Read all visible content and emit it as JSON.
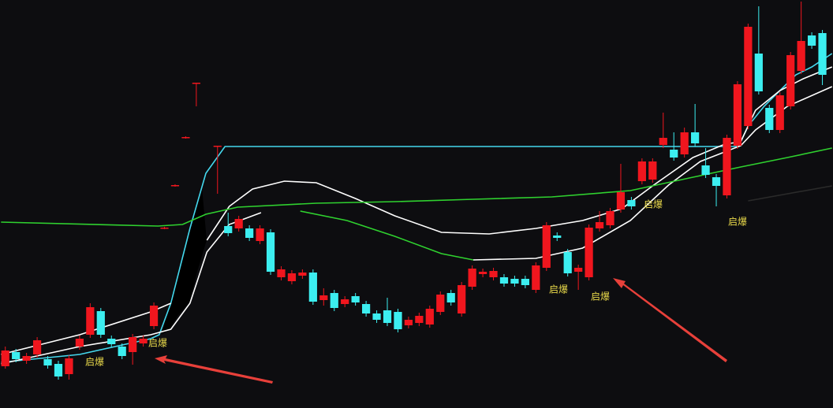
{
  "chart_data": {
    "type": "candlestick",
    "xlim": [
      -0.5,
      78
    ],
    "ylim": [
      0,
      518
    ],
    "up_color": "#f0161e",
    "down_color": "#3ceef0",
    "open": [
      53,
      71,
      60,
      68,
      62,
      56,
      43,
      78,
      93,
      123,
      88,
      78,
      71,
      82,
      104,
      228,
      282,
      343,
      412,
      null,
      332,
      231,
      228,
      228,
      212,
      223,
      166,
      161,
      168,
      172,
      137,
      146,
      132,
      142,
      132,
      120,
      124,
      122,
      105,
      108,
      106,
      122,
      146,
      120,
      154,
      170,
      166,
      166,
      164,
      164,
      150,
      178,
      219,
      198,
      173,
      166,
      228,
      232,
      252,
      264,
      288,
      290,
      334,
      328,
      322,
      350,
      308,
      293,
      270,
      333,
      358,
      450,
      381,
      353,
      383,
      428,
      473,
      476
    ],
    "high": [
      78,
      75,
      70,
      90,
      66,
      60,
      67,
      92,
      133,
      127,
      92,
      82,
      94,
      92,
      134,
      230,
      284,
      345,
      413,
      null,
      333,
      248,
      244,
      232,
      232,
      227,
      180,
      175,
      176,
      176,
      152,
      150,
      142,
      146,
      136,
      124,
      140,
      126,
      116,
      121,
      130,
      148,
      150,
      160,
      181,
      177,
      178,
      170,
      168,
      168,
      185,
      236,
      223,
      202,
      182,
      233,
      250,
      254,
      310,
      268,
      317,
      317,
      375,
      350,
      356,
      386,
      330,
      297,
      347,
      415,
      488,
      510,
      385,
      401,
      452,
      516,
      477,
      480
    ],
    "low": [
      50,
      58,
      56,
      64,
      50,
      36,
      36,
      74,
      89,
      89,
      77,
      62,
      55,
      78,
      100,
      227,
      281,
      342,
      383,
      null,
      272,
      218,
      224,
      212,
      208,
      169,
      162,
      157,
      164,
      131,
      130,
      123,
      128,
      130,
      116,
      108,
      104,
      96,
      101,
      104,
      102,
      118,
      130,
      116,
      150,
      166,
      162,
      154,
      154,
      152,
      146,
      174,
      212,
      167,
      150,
      162,
      224,
      228,
      248,
      252,
      284,
      286,
      330,
      314,
      318,
      332,
      292,
      256,
      266,
      329,
      354,
      398,
      349,
      349,
      379,
      424,
      456,
      410
    ],
    "close": [
      73,
      62,
      66,
      86,
      54,
      40,
      63,
      88,
      128,
      93,
      81,
      66,
      90,
      88,
      130,
      229,
      283,
      344,
      413,
      null,
      333,
      222,
      240,
      216,
      228,
      173,
      176,
      171,
      172,
      135,
      143,
      127,
      138,
      134,
      120,
      112,
      108,
      100,
      112,
      117,
      126,
      144,
      134,
      156,
      177,
      173,
      174,
      158,
      158,
      156,
      181,
      232,
      216,
      171,
      178,
      229,
      236,
      250,
      274,
      256,
      313,
      313,
      343,
      318,
      350,
      336,
      296,
      282,
      343,
      411,
      484,
      402,
      353,
      397,
      448,
      466,
      460,
      423
    ],
    "series": [
      {
        "color": "#44d8ee",
        "x": [
          -0.4,
          7,
          13.7,
          14.5,
          15.6,
          17.4,
          18.9,
          20.7,
          69.1,
          70,
          71.5,
          73,
          74.5,
          76,
          77.9
        ],
        "values": [
          58,
          68,
          88,
          93,
          133,
          228,
          298,
          332,
          332,
          358,
          383,
          403,
          423,
          433,
          450
        ]
      },
      {
        "color": "#ffffff",
        "x": [
          -0.4,
          7,
          13.7,
          15.6,
          17,
          19,
          21.1,
          23.3,
          26.3,
          29.3,
          33,
          36.7,
          41.1,
          45.6,
          50,
          54.4,
          58.1,
          61.1,
          64.8,
          67.8,
          69.3,
          70.7,
          73,
          75.2,
          77.9
        ],
        "values": [
          68,
          93,
          122,
          133,
          null,
          213,
          256,
          278,
          288,
          286,
          266,
          244,
          223,
          221,
          228,
          238,
          253,
          283,
          318,
          335,
          338,
          378,
          403,
          418,
          433
        ]
      },
      {
        "color": "#ffffff",
        "x": [
          -0.4,
          7,
          13.7,
          15.6,
          17.4,
          19,
          21.1,
          24.1,
          25,
          44.1,
          50,
          54.4,
          58.9,
          62.5,
          65.5,
          69.3,
          70.7,
          73.7,
          77.9
        ],
        "values": [
          56,
          78,
          93,
          100,
          133,
          198,
          233,
          248,
          null,
          188,
          190,
          203,
          238,
          283,
          313,
          333,
          353,
          383,
          408
        ]
      },
      {
        "color": "#2fd12f",
        "x": [
          -0.4,
          14.4,
          16.7,
          18.9,
          21.9,
          29.3,
          36.7,
          44.1,
          51.5,
          58.9,
          64.8,
          69.3,
          73.7,
          77.9
        ],
        "values": [
          236,
          231,
          233,
          246,
          255,
          260,
          262,
          265,
          268,
          276,
          293,
          306,
          318,
          330
        ]
      },
      {
        "color": "#2fd12f",
        "x": [
          27.8,
          32.2,
          36.7,
          41.1,
          44.1
        ],
        "values": [
          250,
          238,
          218,
          196,
          188
        ]
      },
      {
        "color": "#2a2a2a",
        "x": [
          70,
          77.9
        ],
        "values": [
          263,
          282
        ]
      }
    ],
    "annotations": [
      "启爆",
      "启爆",
      "启爆",
      "启爆",
      "启爆",
      "启爆"
    ]
  }
}
